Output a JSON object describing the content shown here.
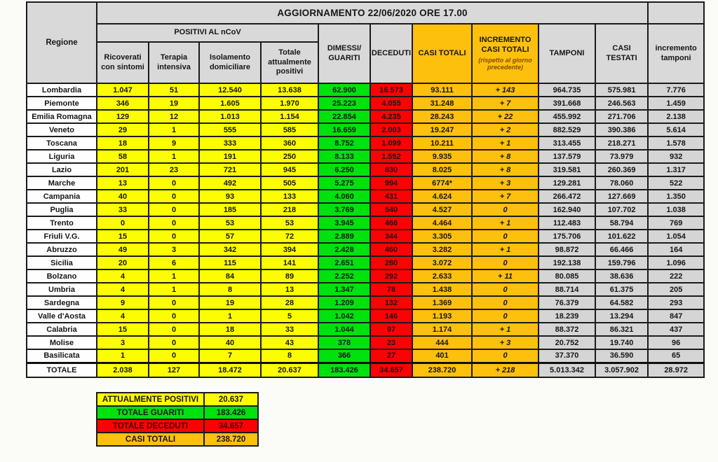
{
  "chart_data": {
    "type": "table",
    "title": "AGGIORNAMENTO 22/06/2020 ORE 17.00",
    "headers": {
      "regione": "Regione",
      "positivi_group": "POSITIVI AL nCoV",
      "sub": [
        "Ricoverati\ncon sintomi",
        "Terapia\nintensiva",
        "Isolamento\ndomiciliare",
        "Totale\nattualmente\npositivi"
      ],
      "dimessi_guariti": "DIMESSI/\nGUARITI",
      "deceduti": "DECEDUTI",
      "casi_totali": "CASI TOTALI",
      "incremento_casi": "INCREMENTO\nCASI  TOTALI",
      "incremento_casi_note": "(rispetto al giorno\nprecedente)",
      "tamponi": "TAMPONI",
      "casi_testati": "CASI\nTESTATI",
      "incremento_tamponi": "incremento\ntamponi"
    },
    "rows": [
      [
        "Lombardia",
        "1.047",
        "51",
        "12.540",
        "13.638",
        "62.900",
        "16.573",
        "93.111",
        "+ 143",
        "964.735",
        "575.981",
        "7.776"
      ],
      [
        "Piemonte",
        "346",
        "19",
        "1.605",
        "1.970",
        "25.223",
        "4.055",
        "31.248",
        "+ 7",
        "391.668",
        "246.563",
        "1.459"
      ],
      [
        "Emilia Romagna",
        "129",
        "12",
        "1.013",
        "1.154",
        "22.854",
        "4.235",
        "28.243",
        "+ 22",
        "455.992",
        "271.706",
        "2.138"
      ],
      [
        "Veneto",
        "29",
        "1",
        "555",
        "585",
        "16.659",
        "2.003",
        "19.247",
        "+ 2",
        "882.529",
        "390.386",
        "5.614"
      ],
      [
        "Toscana",
        "18",
        "9",
        "333",
        "360",
        "8.752",
        "1.099",
        "10.211",
        "+ 1",
        "313.455",
        "218.271",
        "1.578"
      ],
      [
        "Liguria",
        "58",
        "1",
        "191",
        "250",
        "8.133",
        "1.552",
        "9.935",
        "+ 8",
        "137.579",
        "73.979",
        "932"
      ],
      [
        "Lazio",
        "201",
        "23",
        "721",
        "945",
        "6.250",
        "830",
        "8.025",
        "+ 8",
        "319.581",
        "260.369",
        "1.317"
      ],
      [
        "Marche",
        "13",
        "0",
        "492",
        "505",
        "5.275",
        "994",
        "6774*",
        "+ 3",
        "129.281",
        "78.060",
        "522"
      ],
      [
        "Campania",
        "40",
        "0",
        "93",
        "133",
        "4.060",
        "431",
        "4.624",
        "+ 7",
        "266.472",
        "127.669",
        "1.350"
      ],
      [
        "Puglia",
        "33",
        "0",
        "185",
        "218",
        "3.769",
        "540",
        "4.527",
        "0",
        "162.940",
        "107.702",
        "1.038"
      ],
      [
        "Trento",
        "0",
        "0",
        "53",
        "53",
        "3.945",
        "466",
        "4.464",
        "+ 1",
        "112.483",
        "58.794",
        "769"
      ],
      [
        "Friuli V.G.",
        "15",
        "0",
        "57",
        "72",
        "2.889",
        "344",
        "3.305",
        "0",
        "175.706",
        "101.622",
        "1.054"
      ],
      [
        "Abruzzo",
        "49",
        "3",
        "342",
        "394",
        "2.428",
        "460",
        "3.282",
        "+ 1",
        "98.872",
        "66.466",
        "164"
      ],
      [
        "Sicilia",
        "20",
        "6",
        "115",
        "141",
        "2.651",
        "280",
        "3.072",
        "0",
        "192.138",
        "159.796",
        "1.096"
      ],
      [
        "Bolzano",
        "4",
        "1",
        "84",
        "89",
        "2.252",
        "292",
        "2.633",
        "+ 11",
        "80.085",
        "38.636",
        "222"
      ],
      [
        "Umbria",
        "4",
        "1",
        "8",
        "13",
        "1.347",
        "78",
        "1.438",
        "0",
        "88.714",
        "61.375",
        "205"
      ],
      [
        "Sardegna",
        "9",
        "0",
        "19",
        "28",
        "1.209",
        "132",
        "1.369",
        "0",
        "76.379",
        "64.582",
        "293"
      ],
      [
        "Valle d'Aosta",
        "4",
        "0",
        "1",
        "5",
        "1.042",
        "146",
        "1.193",
        "0",
        "18.239",
        "13.294",
        "847"
      ],
      [
        "Calabria",
        "15",
        "0",
        "18",
        "33",
        "1.044",
        "97",
        "1.174",
        "+ 1",
        "88.372",
        "86.321",
        "437"
      ],
      [
        "Molise",
        "3",
        "0",
        "40",
        "43",
        "378",
        "23",
        "444",
        "+ 3",
        "20.752",
        "19.740",
        "96"
      ],
      [
        "Basilicata",
        "1",
        "0",
        "7",
        "8",
        "366",
        "27",
        "401",
        "0",
        "37.370",
        "36.590",
        "65"
      ]
    ],
    "totale": [
      "TOTALE",
      "2.038",
      "127",
      "18.472",
      "20.637",
      "183.426",
      "34.657",
      "238.720",
      "+ 218",
      "5.013.342",
      "3.057.902",
      "28.972"
    ],
    "summary": [
      {
        "label": "ATTUALMENTE POSITIVI",
        "value": "20.637",
        "bg": "#fdfd02"
      },
      {
        "label": "TOTALE GUARITI",
        "value": "183.426",
        "bg": "#00e20e"
      },
      {
        "label": "TOTALE DECEDUTI",
        "value": "34.657",
        "bg": "#fd0204"
      },
      {
        "label": "CASI TOTALI",
        "value": "238.720",
        "bg": "#fdc00d"
      }
    ]
  },
  "colors": {
    "yellow": "#fdfd02",
    "green": "#00e20e",
    "red": "#fd0204",
    "orange": "#fdc00d",
    "header_grey": "#d9d9d9",
    "cell_grey": "#d5d5d5",
    "border": "#1b1b1b"
  }
}
